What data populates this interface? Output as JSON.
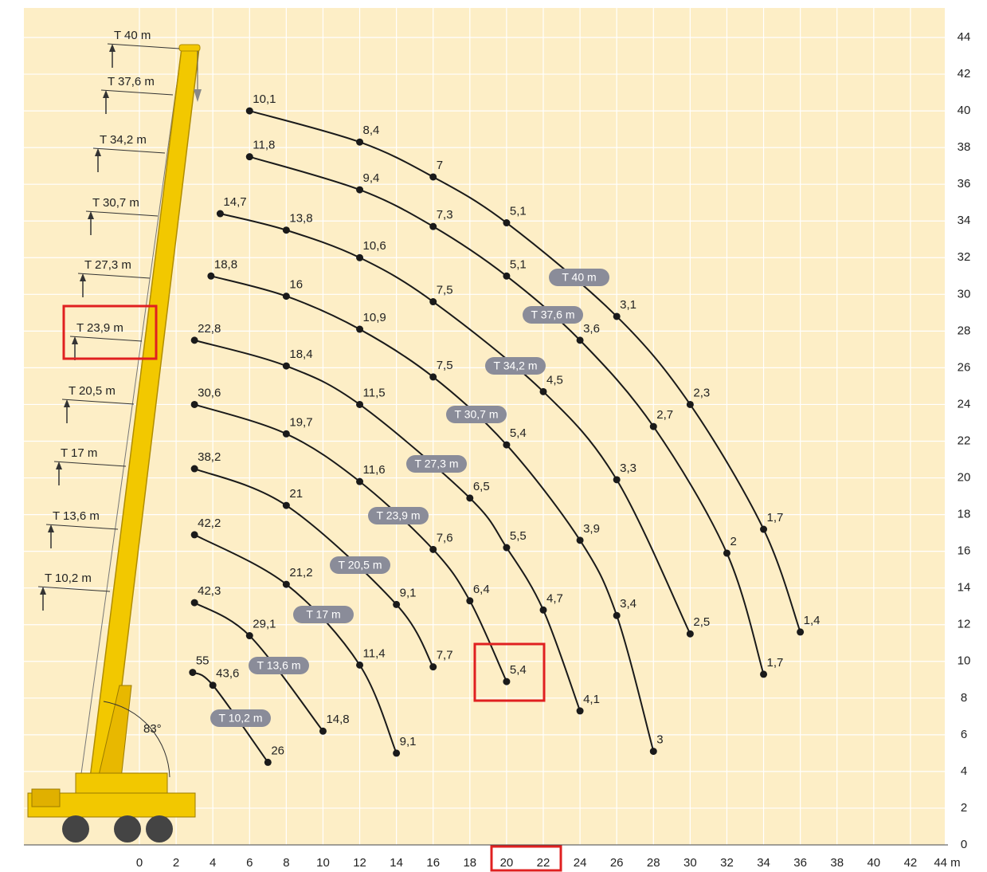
{
  "chart_data": {
    "type": "line",
    "xlim": [
      0,
      44
    ],
    "ylim": [
      0,
      44
    ],
    "xticks": [
      0,
      2,
      4,
      6,
      8,
      10,
      12,
      14,
      16,
      18,
      20,
      22,
      24,
      26,
      28,
      30,
      32,
      34,
      36,
      38,
      40,
      42,
      {
        "value": 44,
        "label": "44 m"
      }
    ],
    "yticks": [
      0,
      2,
      4,
      6,
      8,
      10,
      12,
      14,
      16,
      18,
      20,
      22,
      24,
      26,
      28,
      30,
      32,
      34,
      36,
      38,
      40,
      42,
      44
    ],
    "grid": true,
    "background": "#fdeec6",
    "curve_color": "#1a1a1a",
    "pill_color": "#8a8c99",
    "annotations": [
      "83°"
    ],
    "series": [
      {
        "name": "T 40 m",
        "x": [
          6,
          12,
          16,
          20,
          26,
          30,
          34,
          36
        ],
        "values": [
          40.0,
          38.3,
          36.4,
          33.9,
          28.8,
          24.0,
          17.2,
          11.6
        ],
        "loads": [
          10.1,
          8.4,
          7,
          5.1,
          3.1,
          2.3,
          1.7,
          1.4
        ],
        "load_labels": [
          "10,1",
          "8,4",
          "7",
          "5,1",
          "3,1",
          "2,3",
          "1,7",
          "1,4"
        ]
      },
      {
        "name": "T 37,6 m",
        "x": [
          6,
          12,
          16,
          20,
          24,
          28,
          32,
          34
        ],
        "values": [
          37.5,
          35.7,
          33.7,
          31.0,
          27.5,
          22.8,
          15.9,
          9.3
        ],
        "loads": [
          11.8,
          9.4,
          7.3,
          5.1,
          3.6,
          2.7,
          2,
          1.7
        ],
        "load_labels": [
          "11,8",
          "9,4",
          "7,3",
          "5,1",
          "3,6",
          "2,7",
          "2",
          "1,7"
        ]
      },
      {
        "name": "T 34,2 m",
        "x": [
          4.4,
          8,
          12,
          16,
          22,
          26,
          30
        ],
        "values": [
          34.4,
          33.5,
          32.0,
          29.6,
          24.7,
          19.9,
          11.5
        ],
        "loads": [
          14.7,
          13.8,
          10.6,
          7.5,
          4.5,
          3.3,
          2.5
        ],
        "load_labels": [
          "14,7",
          "13,8",
          "10,6",
          "7,5",
          "4,5",
          "3,3",
          "2,5"
        ]
      },
      {
        "name": "T 30,7 m",
        "x": [
          3.9,
          8,
          12,
          16,
          20,
          24,
          26,
          28
        ],
        "values": [
          31.0,
          29.9,
          28.1,
          25.5,
          21.8,
          16.6,
          12.5,
          5.1
        ],
        "loads": [
          18.8,
          16,
          10.9,
          7.5,
          5.4,
          3.9,
          3.4,
          3
        ],
        "load_labels": [
          "18,8",
          "16",
          "10,9",
          "7,5",
          "5,4",
          "3,9",
          "3,4",
          "3"
        ]
      },
      {
        "name": "T 27,3 m",
        "x": [
          3,
          8,
          12,
          18,
          20,
          22,
          24
        ],
        "values": [
          27.5,
          26.1,
          24.0,
          18.9,
          16.2,
          12.8,
          7.3
        ],
        "loads": [
          22.8,
          18.4,
          11.5,
          6.5,
          5.5,
          4.7,
          4.1
        ],
        "load_labels": [
          "22,8",
          "18,4",
          "11,5",
          "6,5",
          "5,5",
          "4,7",
          "4,1"
        ]
      },
      {
        "name": "T 23,9 m",
        "x": [
          3,
          8,
          12,
          16,
          18,
          20
        ],
        "values": [
          24.0,
          22.4,
          19.8,
          16.1,
          13.3,
          8.9
        ],
        "loads": [
          30.6,
          19.7,
          11.6,
          7.6,
          6.4,
          5.4
        ],
        "load_labels": [
          "30,6",
          "19,7",
          "11,6",
          "7,6",
          "6,4",
          "5,4"
        ]
      },
      {
        "name": "T 20,5 m",
        "x": [
          3,
          8,
          14,
          16
        ],
        "values": [
          20.5,
          18.5,
          13.1,
          9.7
        ],
        "loads": [
          38.2,
          21,
          9.1,
          7.7
        ],
        "load_labels": [
          "38,2",
          "21",
          "9,1",
          "7,7"
        ]
      },
      {
        "name": "T 17 m",
        "x": [
          3,
          8,
          12,
          14
        ],
        "values": [
          16.9,
          14.2,
          9.8,
          5.0
        ],
        "loads": [
          42.2,
          21.2,
          11.4,
          9.1
        ],
        "load_labels": [
          "42,2",
          "21,2",
          "11,4",
          "9,1"
        ]
      },
      {
        "name": "T 13,6 m",
        "x": [
          3,
          6,
          10
        ],
        "values": [
          13.2,
          11.4,
          6.2
        ],
        "loads": [
          42.3,
          29.1,
          14.8
        ],
        "load_labels": [
          "42,3",
          "29,1",
          "14,8"
        ]
      },
      {
        "name": "T 10,2 m",
        "x": [
          2.9,
          4,
          7
        ],
        "values": [
          9.4,
          8.7,
          4.5
        ],
        "loads": [
          55,
          43.6,
          26
        ],
        "load_labels": [
          "55",
          "43,6",
          "26"
        ]
      }
    ]
  }
}
